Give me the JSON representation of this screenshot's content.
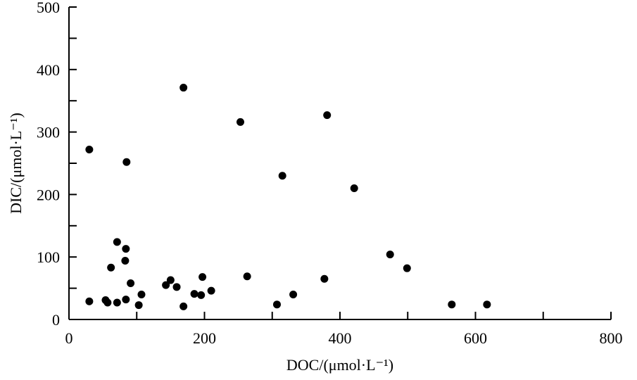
{
  "chart_data": {
    "type": "scatter",
    "title": "",
    "xlabel": "DOC/(μmol·L⁻¹)",
    "ylabel": "DIC/(μmol·L⁻¹)",
    "xlim": [
      0,
      800
    ],
    "ylim": [
      0,
      500
    ],
    "xticks": [
      0,
      200,
      400,
      600,
      800
    ],
    "yticks": [
      0,
      100,
      200,
      300,
      400,
      500
    ],
    "grid": false,
    "marker_color": "#000000",
    "points": [
      [
        30,
        29
      ],
      [
        54,
        31
      ],
      [
        57,
        27
      ],
      [
        71,
        27
      ],
      [
        84,
        32
      ],
      [
        71,
        124
      ],
      [
        84,
        113
      ],
      [
        62,
        83
      ],
      [
        83,
        94
      ],
      [
        91,
        58
      ],
      [
        103,
        23
      ],
      [
        107,
        40
      ],
      [
        143,
        55
      ],
      [
        150,
        63
      ],
      [
        159,
        52
      ],
      [
        169,
        21
      ],
      [
        185,
        41
      ],
      [
        195,
        39
      ],
      [
        197,
        68
      ],
      [
        210,
        46
      ],
      [
        263,
        69
      ],
      [
        30,
        272
      ],
      [
        85,
        252
      ],
      [
        169,
        371
      ],
      [
        253,
        316
      ],
      [
        381,
        327
      ],
      [
        315,
        230
      ],
      [
        421,
        210
      ],
      [
        474,
        104
      ],
      [
        499,
        82
      ],
      [
        377,
        65
      ],
      [
        331,
        40
      ],
      [
        307,
        24
      ],
      [
        565,
        24
      ],
      [
        617,
        24
      ]
    ]
  }
}
